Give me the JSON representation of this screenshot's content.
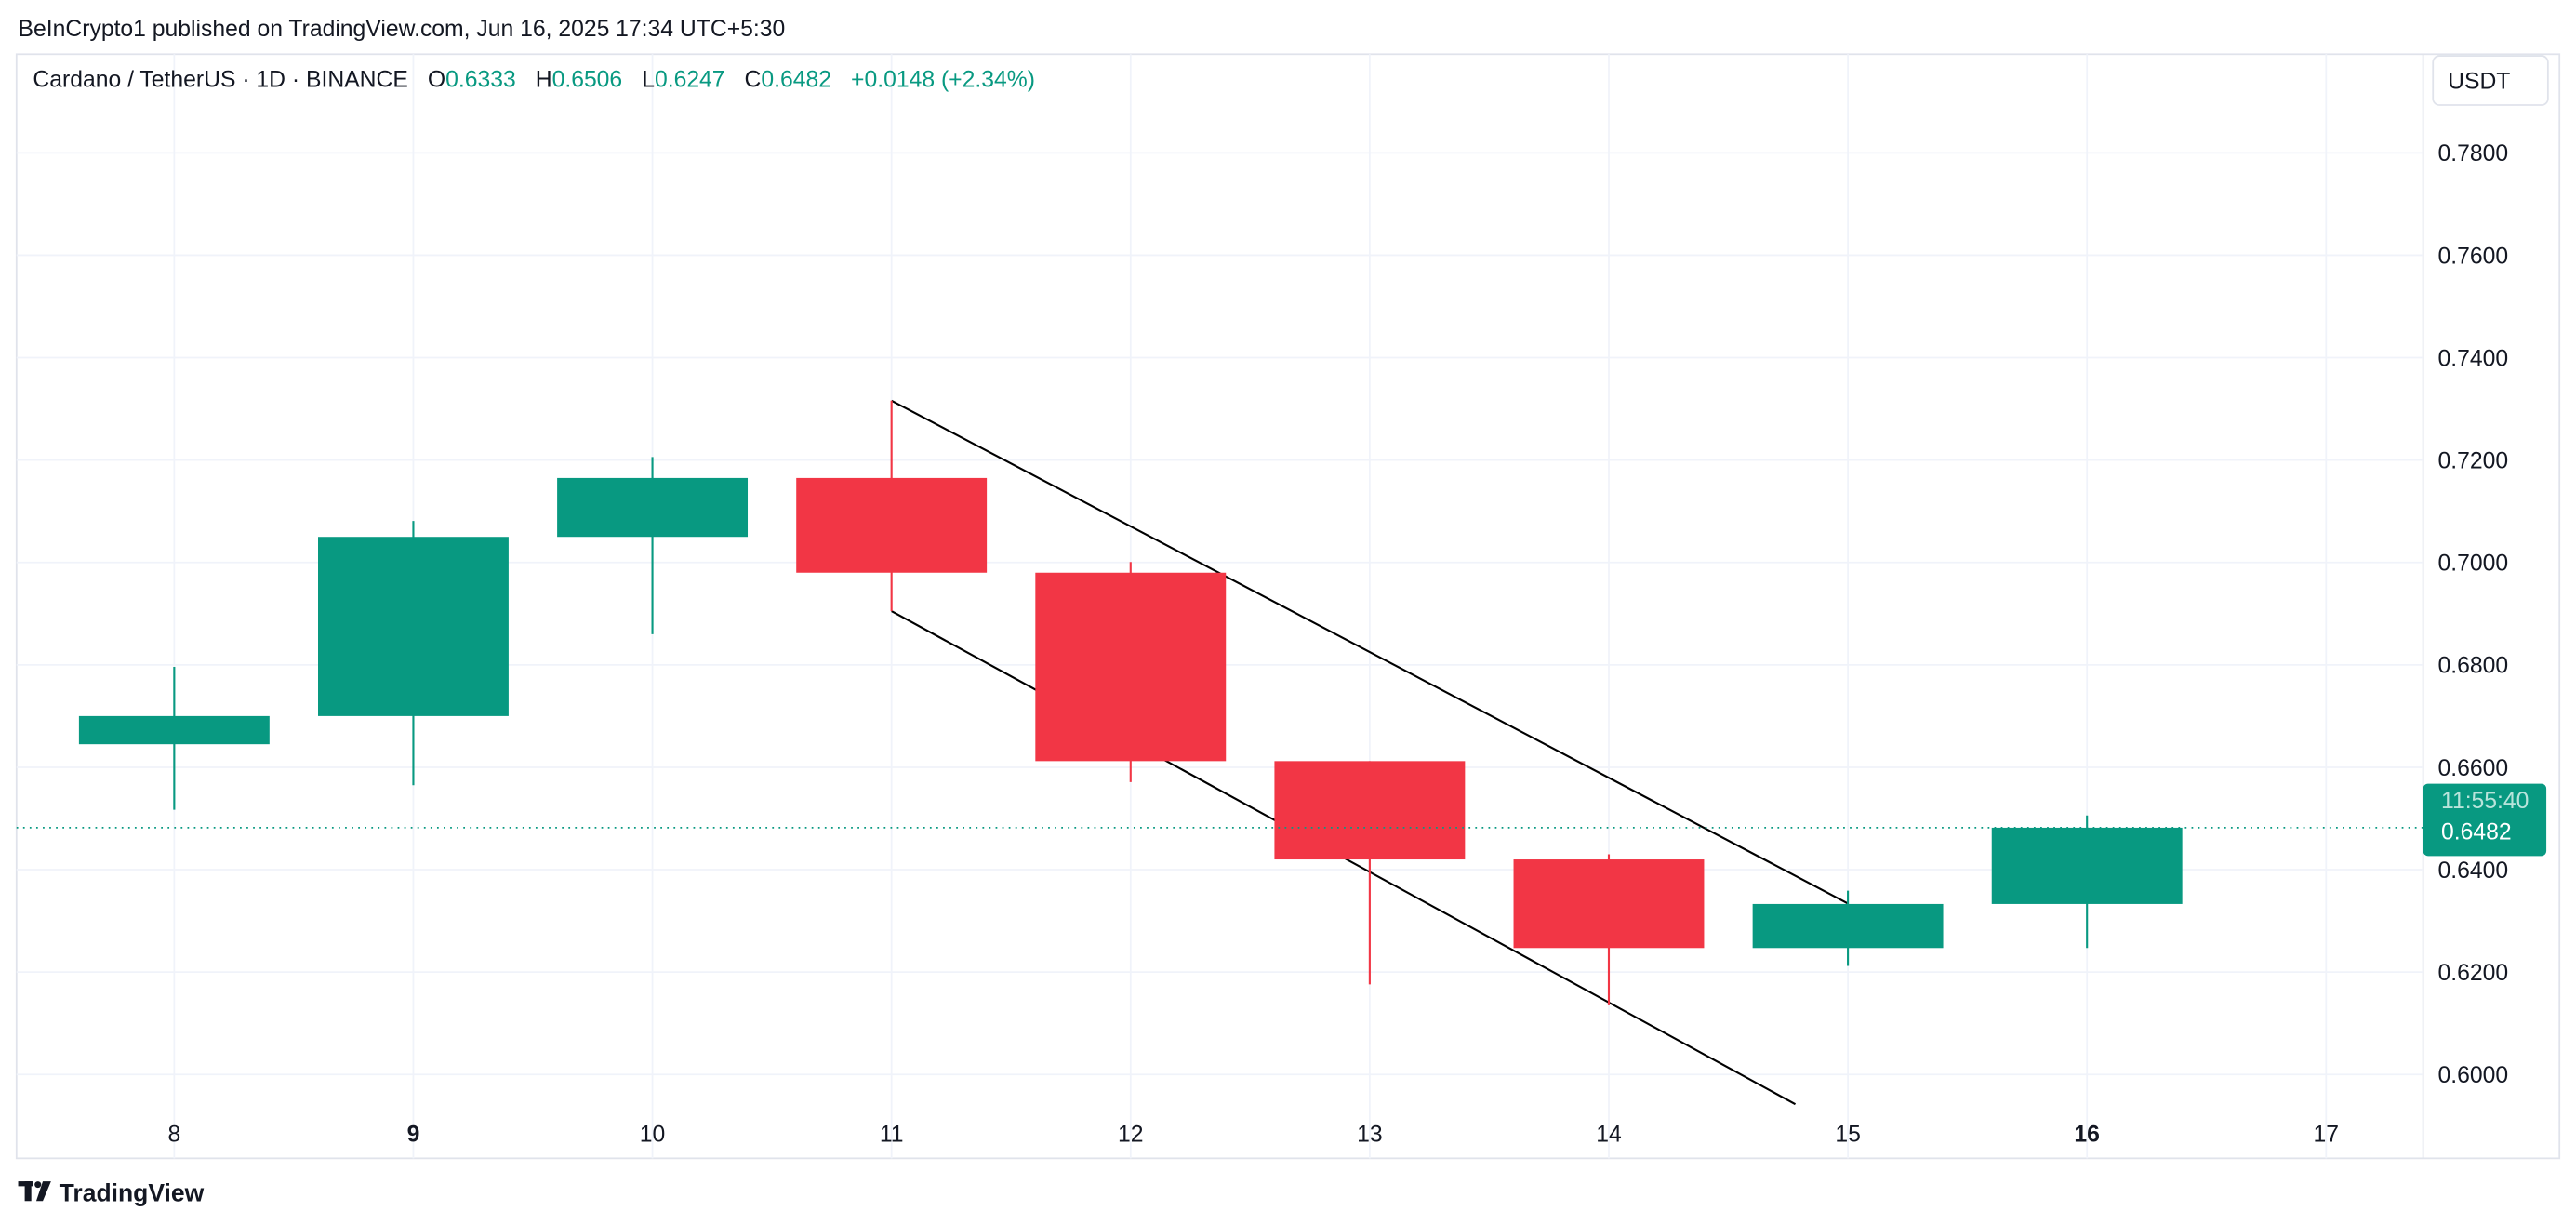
{
  "header": {
    "published": "BeInCrypto1 published on TradingView.com, Jun 16, 2025 17:34 UTC+5:30"
  },
  "legend": {
    "symbol": "Cardano / TetherUS · 1D · BINANCE",
    "o_label": "O",
    "o_value": "0.6333",
    "h_label": "H",
    "h_value": "0.6506",
    "l_label": "L",
    "l_value": "0.6247",
    "c_label": "C",
    "c_value": "0.6482",
    "change": "+0.0148 (+2.34%)"
  },
  "currency_button": "USDT",
  "last_price": {
    "value": "0.6482",
    "countdown": "11:55:40"
  },
  "footer": {
    "brand": "TradingView"
  },
  "colors": {
    "up": "#089981",
    "down": "#F23645",
    "grid": "#F0F3FA",
    "trendline": "#000000"
  },
  "chart_data": {
    "type": "candlestick",
    "x": [
      "8",
      "9",
      "10",
      "11",
      "12",
      "13",
      "14",
      "15",
      "16"
    ],
    "x_ticks": [
      "8",
      "9",
      "10",
      "11",
      "12",
      "13",
      "14",
      "15",
      "16",
      "17"
    ],
    "bold_ticks": [
      "9",
      "16"
    ],
    "y_ticks": [
      "0.6000",
      "0.6200",
      "0.6400",
      "0.6600",
      "0.6800",
      "0.7000",
      "0.7200",
      "0.7400",
      "0.7600",
      "0.7800"
    ],
    "ylim": [
      0.593,
      0.795
    ],
    "xlim": [
      7.35,
      17.4
    ],
    "grid": true,
    "candles": [
      {
        "day": 8,
        "open": 0.6645,
        "high": 0.6796,
        "low": 0.6517,
        "close": 0.67
      },
      {
        "day": 9,
        "open": 0.67,
        "high": 0.7081,
        "low": 0.6565,
        "close": 0.705
      },
      {
        "day": 10,
        "open": 0.705,
        "high": 0.7206,
        "low": 0.686,
        "close": 0.7165
      },
      {
        "day": 11,
        "open": 0.7165,
        "high": 0.7316,
        "low": 0.6905,
        "close": 0.698
      },
      {
        "day": 12,
        "open": 0.698,
        "high": 0.7001,
        "low": 0.6571,
        "close": 0.6612
      },
      {
        "day": 13,
        "open": 0.6612,
        "high": 0.6612,
        "low": 0.6176,
        "close": 0.642
      },
      {
        "day": 14,
        "open": 0.642,
        "high": 0.643,
        "low": 0.6135,
        "close": 0.6247
      },
      {
        "day": 15,
        "open": 0.6247,
        "high": 0.6359,
        "low": 0.6212,
        "close": 0.6333
      },
      {
        "day": 16,
        "open": 0.6333,
        "high": 0.6506,
        "low": 0.6247,
        "close": 0.6482
      }
    ],
    "trendlines": [
      {
        "from": [
          11,
          0.7316
        ],
        "to": [
          15,
          0.6334
        ]
      },
      {
        "from": [
          11,
          0.6905
        ],
        "to": [
          14.78,
          0.5942
        ]
      }
    ],
    "last_price": 0.6482
  }
}
